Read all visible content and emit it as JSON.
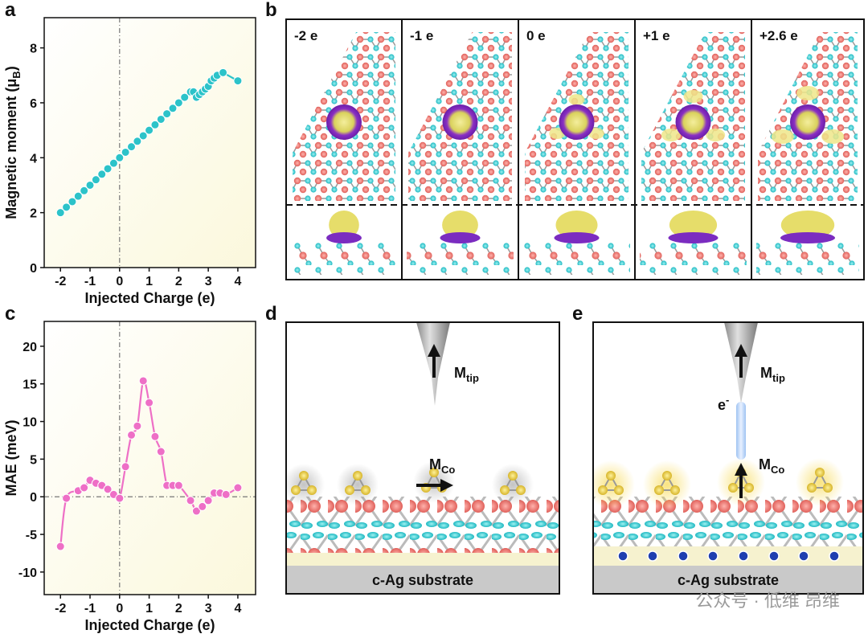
{
  "chart_data": [
    {
      "type": "line",
      "panel": "a",
      "xlabel": "Injected Charge (e)",
      "ylabel": {
        "main": "Magnetic moment (μ",
        "sub": "B",
        "end": ")"
      },
      "x": [
        -2,
        -1.8,
        -1.6,
        -1.4,
        -1.2,
        -1,
        -0.8,
        -0.6,
        -0.4,
        -0.2,
        0,
        0.2,
        0.4,
        0.6,
        0.8,
        1,
        1.2,
        1.4,
        1.6,
        1.8,
        2,
        2.2,
        2.4,
        2.5,
        2.6,
        2.7,
        2.8,
        2.9,
        3,
        3.1,
        3.2,
        3.3,
        3.5,
        4
      ],
      "series": [
        {
          "color": "#2cc3c9",
          "values": [
            2,
            2.2,
            2.4,
            2.6,
            2.8,
            3,
            3.2,
            3.4,
            3.6,
            3.8,
            4,
            4.2,
            4.4,
            4.6,
            4.8,
            5,
            5.2,
            5.4,
            5.6,
            5.8,
            6,
            6.2,
            6.4,
            6.4,
            6.2,
            6.3,
            6.4,
            6.5,
            6.6,
            6.8,
            6.9,
            7,
            7.1,
            6.8
          ]
        }
      ],
      "xlim": [
        -2.55,
        4.6
      ],
      "ylim": [
        0,
        9.1
      ],
      "xticks": [
        -2,
        -1,
        0,
        1,
        2,
        3,
        4
      ],
      "yticks": [
        0,
        2,
        4,
        6,
        8
      ],
      "vline": 0,
      "markers": true,
      "smooth": false
    },
    {
      "type": "line",
      "panel": "c",
      "xlabel": "Injected Charge (e)",
      "ylabel": {
        "main": "MAE (meV)"
      },
      "x": [
        -2,
        -1.8,
        -1.4,
        -1.2,
        -1,
        -0.8,
        -0.6,
        -0.4,
        -0.2,
        0,
        0.2,
        0.4,
        0.6,
        0.8,
        1,
        1.2,
        1.4,
        1.6,
        1.8,
        2,
        2.4,
        2.6,
        2.8,
        3,
        3.2,
        3.4,
        3.6,
        4
      ],
      "series": [
        {
          "color": "#ee6fc6",
          "values": [
            -6.6,
            -0.2,
            0.8,
            1.2,
            2.2,
            1.8,
            1.5,
            1,
            0.3,
            -0.2,
            4,
            8.2,
            9.4,
            15.4,
            12.5,
            8,
            6,
            1.5,
            1.5,
            1.5,
            -0.5,
            -1.9,
            -1.3,
            -0.5,
            0.5,
            0.5,
            0.3,
            1.2
          ]
        }
      ],
      "xlim": [
        -2.55,
        4.6
      ],
      "ylim": [
        -13,
        23.3
      ],
      "xticks": [
        -2,
        -1,
        0,
        1,
        2,
        3,
        4
      ],
      "yticks": [
        -10,
        -5,
        0,
        5,
        10,
        15,
        20
      ],
      "vline": 0,
      "hline": 0,
      "markers": true,
      "smooth": true
    }
  ],
  "panel_labels": [
    "a",
    "b",
    "c",
    "d",
    "e"
  ],
  "panel_b": {
    "columns": [
      "-2 e",
      "-1 e",
      "0 e",
      "+1 e",
      "+2.6 e"
    ]
  },
  "panel_d": {
    "tip": {
      "main": "M",
      "sub": "tip"
    },
    "co": {
      "main": "M",
      "sub": "Co"
    },
    "substrate": "c-Ag substrate"
  },
  "panel_e": {
    "tip": {
      "main": "M",
      "sub": "tip"
    },
    "co": {
      "main": "M",
      "sub": "Co"
    },
    "electron": {
      "main": "e",
      "sup": "-"
    },
    "substrate": "c-Ag substrate"
  },
  "watermark": "公众号 · 低维 昂维"
}
